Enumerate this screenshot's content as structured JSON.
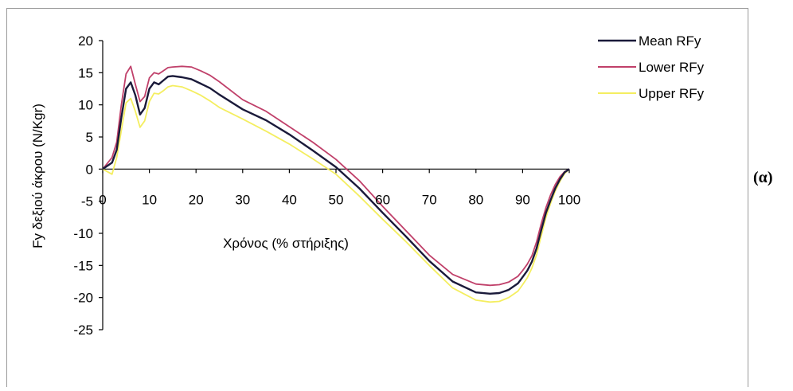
{
  "panel_label": "(α)",
  "chart_data": {
    "type": "line",
    "title": "",
    "xlabel": "Χρόνος (% στήριξης)",
    "ylabel": "Fy δεξιού άκρου (N/Kgr)",
    "xlim": [
      0,
      100
    ],
    "ylim": [
      -25,
      20
    ],
    "x_ticks": [
      0,
      10,
      20,
      30,
      40,
      50,
      60,
      70,
      80,
      90,
      100
    ],
    "y_ticks": [
      20,
      15,
      10,
      5,
      0,
      -5,
      -10,
      -15,
      -20,
      -25
    ],
    "x_tick_labels": [
      "0",
      "10",
      "20",
      "30",
      "40",
      "50",
      "60",
      "70",
      "80",
      "90",
      "100"
    ],
    "y_tick_labels": [
      "20",
      "15",
      "10",
      "5",
      "0",
      "-5",
      "-10",
      "-15",
      "-20",
      "-25"
    ],
    "grid": false,
    "legend_position": "top-right",
    "x": [
      0,
      2,
      3,
      4,
      5,
      6,
      7,
      8,
      9,
      10,
      11,
      12,
      13,
      14,
      15,
      17,
      19,
      21,
      23,
      25,
      30,
      35,
      40,
      45,
      50,
      55,
      60,
      65,
      70,
      75,
      80,
      83,
      85,
      87,
      89,
      90,
      91,
      92,
      93,
      94,
      95,
      96,
      97,
      98,
      99,
      100
    ],
    "series": [
      {
        "name": "Mean RFy",
        "color": "#1a1a3a",
        "values": [
          0,
          1,
          3,
          8,
          12.5,
          13.5,
          11.5,
          8.5,
          9.5,
          12.5,
          13.5,
          13.2,
          13.8,
          14.4,
          14.5,
          14.3,
          14.0,
          13.3,
          12.6,
          11.6,
          9.3,
          7.6,
          5.4,
          2.9,
          0.3,
          -3.0,
          -6.8,
          -10.5,
          -14.3,
          -17.5,
          -19.2,
          -19.4,
          -19.3,
          -18.8,
          -17.8,
          -16.8,
          -15.8,
          -14.4,
          -12.3,
          -9.5,
          -6.8,
          -4.8,
          -3.0,
          -1.6,
          -0.5,
          0
        ]
      },
      {
        "name": "Lower RFy",
        "color": "#c0406a",
        "values": [
          0,
          1.8,
          4.2,
          10,
          14.8,
          16,
          13.2,
          10.5,
          11.3,
          14.2,
          15.0,
          14.8,
          15.3,
          15.8,
          15.9,
          16.0,
          15.9,
          15.3,
          14.6,
          13.6,
          10.8,
          9.0,
          6.6,
          4.2,
          1.5,
          -1.8,
          -5.8,
          -9.6,
          -13.4,
          -16.4,
          -17.9,
          -18.1,
          -18.0,
          -17.6,
          -16.7,
          -15.8,
          -14.8,
          -13.5,
          -11.3,
          -8.5,
          -6.0,
          -4.0,
          -2.4,
          -1.2,
          -0.4,
          0
        ]
      },
      {
        "name": "Upper RFy",
        "color": "#f4ee60",
        "values": [
          0,
          -0.8,
          1.8,
          6,
          10.3,
          11.0,
          9.0,
          6.5,
          7.5,
          10.5,
          11.8,
          11.7,
          12.2,
          12.8,
          13.0,
          12.8,
          12.2,
          11.5,
          10.6,
          9.6,
          7.8,
          5.9,
          3.9,
          1.6,
          -0.8,
          -4.2,
          -7.8,
          -11.3,
          -15.0,
          -18.5,
          -20.4,
          -20.7,
          -20.6,
          -20.0,
          -19.0,
          -18.0,
          -16.9,
          -15.4,
          -13.3,
          -10.4,
          -7.5,
          -5.3,
          -3.4,
          -1.9,
          -0.7,
          0
        ]
      }
    ]
  }
}
